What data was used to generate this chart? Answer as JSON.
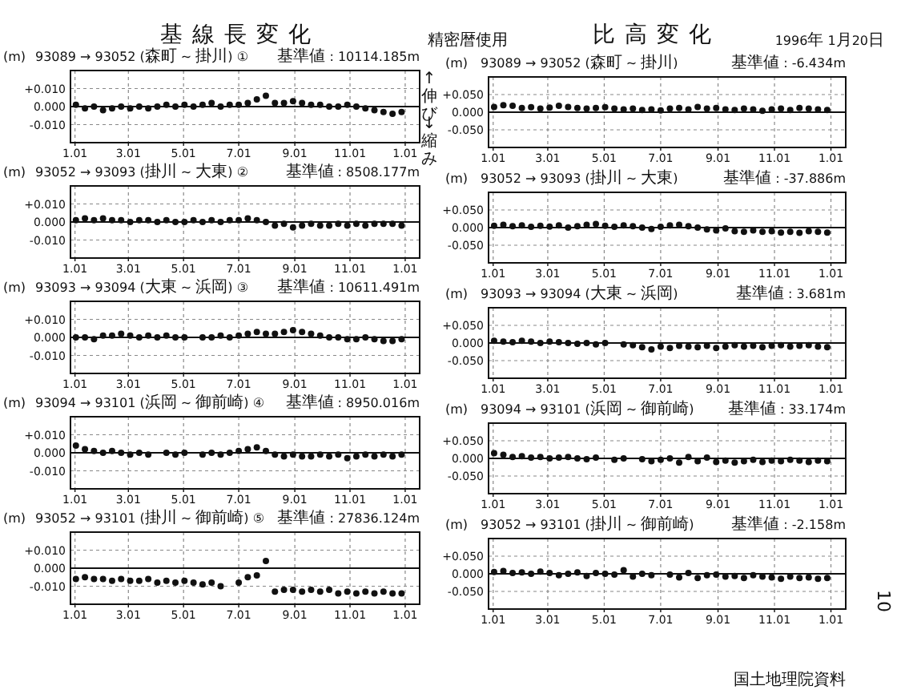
{
  "chart_data": [
    {
      "type": "scatter",
      "title": "93089 → 93052 (森町 ~ 掛川) ①",
      "subtitle": "基準値 : 10114.185m",
      "ylabel": "(m)",
      "annotations": [
        "基線長変化",
        "精密暦使用"
      ],
      "marker": "circle",
      "grid": true,
      "xlim": [
        "1994-12-27",
        "1996-01-17"
      ],
      "xticks": [
        {
          "value": "1995-01-01",
          "label": "1.01"
        },
        {
          "value": "1995-03-01",
          "label": "3.01"
        },
        {
          "value": "1995-05-01",
          "label": "5.01"
        },
        {
          "value": "1995-07-01",
          "label": "7.01"
        },
        {
          "value": "1995-09-01",
          "label": "9.01"
        },
        {
          "value": "1995-11-01",
          "label": "11.01"
        },
        {
          "value": "1996-01-01",
          "label": "1.01"
        }
      ],
      "ylim": [
        -0.02,
        0.02
      ],
      "yticks": [
        {
          "value": 0.01,
          "label": "+0.010"
        },
        {
          "value": 0,
          "label": "0.000"
        },
        {
          "value": -0.01,
          "label": "-0.010"
        }
      ],
      "ref_lines": [
        {
          "axis": "y",
          "value": 0
        }
      ],
      "x": [
        "1995-01-02",
        "1995-01-12",
        "1995-01-22",
        "1995-02-01",
        "1995-02-11",
        "1995-02-21",
        "1995-03-03",
        "1995-03-13",
        "1995-03-23",
        "1995-04-02",
        "1995-04-12",
        "1995-04-22",
        "1995-05-02",
        "1995-05-12",
        "1995-05-22",
        "1995-06-01",
        "1995-06-11",
        "1995-06-21",
        "1995-07-01",
        "1995-07-11",
        "1995-07-21",
        "1995-07-31",
        "1995-08-10",
        "1995-08-20",
        "1995-08-30",
        "1995-09-09",
        "1995-09-19",
        "1995-09-29",
        "1995-10-09",
        "1995-10-19",
        "1995-10-29",
        "1995-11-08",
        "1995-11-18",
        "1995-11-28",
        "1995-12-08",
        "1995-12-18",
        "1995-12-28"
      ],
      "series": [
        {
          "color": "#111111",
          "values": [
            0.001,
            -0.001,
            0.0,
            -0.002,
            -0.001,
            0.0,
            -0.001,
            0.0,
            -0.001,
            0.0,
            0.001,
            0.0,
            0.001,
            0.0,
            0.001,
            0.002,
            0.0,
            0.001,
            0.001,
            0.002,
            0.004,
            0.006,
            0.002,
            0.002,
            0.003,
            0.002,
            0.001,
            0.001,
            0.0,
            0.0,
            0.001,
            0.0,
            -0.001,
            -0.002,
            -0.003,
            -0.004,
            -0.003
          ]
        }
      ]
    },
    {
      "type": "scatter",
      "title": "93089 → 93052 (森町 ~ 掛川)",
      "subtitle": "基準値 : -6.434m",
      "ylabel": "(m)",
      "annotations": [
        "比高変化",
        "1996年 1月20日",
        "↑伸び",
        "↓縮み"
      ],
      "marker": "circle",
      "grid": true,
      "xlim": [
        "1994-12-27",
        "1996-01-17"
      ],
      "xticks": [
        {
          "value": "1995-01-01",
          "label": "1.01"
        },
        {
          "value": "1995-03-01",
          "label": "3.01"
        },
        {
          "value": "1995-05-01",
          "label": "5.01"
        },
        {
          "value": "1995-07-01",
          "label": "7.01"
        },
        {
          "value": "1995-09-01",
          "label": "9.01"
        },
        {
          "value": "1995-11-01",
          "label": "11.01"
        },
        {
          "value": "1996-01-01",
          "label": "1.01"
        }
      ],
      "ylim": [
        -0.1,
        0.1
      ],
      "yticks": [
        {
          "value": 0.05,
          "label": "+0.050"
        },
        {
          "value": 0,
          "label": "0.000"
        },
        {
          "value": -0.05,
          "label": "-0.050"
        }
      ],
      "ref_lines": [
        {
          "axis": "y",
          "value": 0
        }
      ],
      "x": [
        "1995-01-02",
        "1995-01-12",
        "1995-01-22",
        "1995-02-01",
        "1995-02-11",
        "1995-02-21",
        "1995-03-03",
        "1995-03-13",
        "1995-03-23",
        "1995-04-02",
        "1995-04-12",
        "1995-04-22",
        "1995-05-02",
        "1995-05-12",
        "1995-05-22",
        "1995-06-01",
        "1995-06-11",
        "1995-06-21",
        "1995-07-01",
        "1995-07-11",
        "1995-07-21",
        "1995-07-31",
        "1995-08-10",
        "1995-08-20",
        "1995-08-30",
        "1995-09-09",
        "1995-09-19",
        "1995-09-29",
        "1995-10-09",
        "1995-10-19",
        "1995-10-29",
        "1995-11-08",
        "1995-11-18",
        "1995-11-28",
        "1995-12-08",
        "1995-12-18",
        "1995-12-28"
      ],
      "series": [
        {
          "color": "#111111",
          "values": [
            0.015,
            0.02,
            0.018,
            0.012,
            0.014,
            0.01,
            0.013,
            0.018,
            0.015,
            0.012,
            0.01,
            0.012,
            0.014,
            0.01,
            0.008,
            0.01,
            0.006,
            0.008,
            0.005,
            0.01,
            0.012,
            0.008,
            0.015,
            0.01,
            0.012,
            0.008,
            0.006,
            0.01,
            0.008,
            0.004,
            0.008,
            0.01,
            0.006,
            0.012,
            0.01,
            0.008,
            0.006
          ]
        }
      ]
    },
    {
      "type": "scatter",
      "title": "93052 → 93093 (掛川 ~ 大東) ②",
      "subtitle": "基準値 : 8508.177m",
      "ylabel": "(m)",
      "marker": "circle",
      "grid": true,
      "xlim": [
        "1994-12-27",
        "1996-01-17"
      ],
      "xticks": [
        {
          "value": "1995-01-01",
          "label": "1.01"
        },
        {
          "value": "1995-03-01",
          "label": "3.01"
        },
        {
          "value": "1995-05-01",
          "label": "5.01"
        },
        {
          "value": "1995-07-01",
          "label": "7.01"
        },
        {
          "value": "1995-09-01",
          "label": "9.01"
        },
        {
          "value": "1995-11-01",
          "label": "11.01"
        },
        {
          "value": "1996-01-01",
          "label": "1.01"
        }
      ],
      "ylim": [
        -0.02,
        0.02
      ],
      "yticks": [
        {
          "value": 0.01,
          "label": "+0.010"
        },
        {
          "value": 0,
          "label": "0.000"
        },
        {
          "value": -0.01,
          "label": "-0.010"
        }
      ],
      "ref_lines": [
        {
          "axis": "y",
          "value": 0
        }
      ],
      "x": [
        "1995-01-02",
        "1995-01-12",
        "1995-01-22",
        "1995-02-01",
        "1995-02-11",
        "1995-02-21",
        "1995-03-03",
        "1995-03-13",
        "1995-03-23",
        "1995-04-02",
        "1995-04-12",
        "1995-04-22",
        "1995-05-02",
        "1995-05-12",
        "1995-05-22",
        "1995-06-01",
        "1995-06-11",
        "1995-06-21",
        "1995-07-01",
        "1995-07-11",
        "1995-07-21",
        "1995-07-31",
        "1995-08-10",
        "1995-08-20",
        "1995-08-30",
        "1995-09-09",
        "1995-09-19",
        "1995-09-29",
        "1995-10-09",
        "1995-10-19",
        "1995-10-29",
        "1995-11-08",
        "1995-11-18",
        "1995-11-28",
        "1995-12-08",
        "1995-12-18",
        "1995-12-28"
      ],
      "series": [
        {
          "color": "#111111",
          "values": [
            0.001,
            0.002,
            0.001,
            0.002,
            0.001,
            0.001,
            0.0,
            0.001,
            0.001,
            0.0,
            0.001,
            0.0,
            0.0,
            0.001,
            0.0,
            0.001,
            0.0,
            0.001,
            0.001,
            0.002,
            0.001,
            0.0,
            -0.002,
            -0.001,
            -0.003,
            -0.002,
            -0.001,
            -0.002,
            -0.002,
            -0.001,
            -0.002,
            -0.001,
            -0.002,
            -0.001,
            -0.001,
            -0.001,
            -0.002
          ]
        }
      ]
    },
    {
      "type": "scatter",
      "title": "93052 → 93093 (掛川 ~ 大東)",
      "subtitle": "基準値 : -37.886m",
      "ylabel": "(m)",
      "marker": "circle",
      "grid": true,
      "xlim": [
        "1994-12-27",
        "1996-01-17"
      ],
      "xticks": [
        {
          "value": "1995-01-01",
          "label": "1.01"
        },
        {
          "value": "1995-03-01",
          "label": "3.01"
        },
        {
          "value": "1995-05-01",
          "label": "5.01"
        },
        {
          "value": "1995-07-01",
          "label": "7.01"
        },
        {
          "value": "1995-09-01",
          "label": "9.01"
        },
        {
          "value": "1995-11-01",
          "label": "11.01"
        },
        {
          "value": "1996-01-01",
          "label": "1.01"
        }
      ],
      "ylim": [
        -0.1,
        0.1
      ],
      "yticks": [
        {
          "value": 0.05,
          "label": "+0.050"
        },
        {
          "value": 0,
          "label": "0.000"
        },
        {
          "value": -0.05,
          "label": "-0.050"
        }
      ],
      "ref_lines": [
        {
          "axis": "y",
          "value": 0
        }
      ],
      "x": [
        "1995-01-02",
        "1995-01-12",
        "1995-01-22",
        "1995-02-01",
        "1995-02-11",
        "1995-02-21",
        "1995-03-03",
        "1995-03-13",
        "1995-03-23",
        "1995-04-02",
        "1995-04-12",
        "1995-04-22",
        "1995-05-02",
        "1995-05-12",
        "1995-05-22",
        "1995-06-01",
        "1995-06-11",
        "1995-06-21",
        "1995-07-01",
        "1995-07-11",
        "1995-07-21",
        "1995-07-31",
        "1995-08-10",
        "1995-08-20",
        "1995-08-30",
        "1995-09-09",
        "1995-09-19",
        "1995-09-29",
        "1995-10-09",
        "1995-10-19",
        "1995-10-29",
        "1995-11-08",
        "1995-11-18",
        "1995-11-28",
        "1995-12-08",
        "1995-12-18",
        "1995-12-28"
      ],
      "series": [
        {
          "color": "#111111",
          "values": [
            0.005,
            0.008,
            0.004,
            0.006,
            0.002,
            0.005,
            0.003,
            0.006,
            0.0,
            0.004,
            0.008,
            0.01,
            0.005,
            0.002,
            0.006,
            0.004,
            0.0,
            -0.004,
            0.002,
            0.006,
            0.008,
            0.004,
            0.0,
            -0.005,
            -0.008,
            -0.002,
            -0.01,
            -0.012,
            -0.008,
            -0.012,
            -0.01,
            -0.014,
            -0.012,
            -0.015,
            -0.01,
            -0.012,
            -0.014
          ]
        }
      ]
    },
    {
      "type": "scatter",
      "title": "93093 → 93094 (大東 ~ 浜岡) ③",
      "subtitle": "基準値 : 10611.491m",
      "ylabel": "(m)",
      "marker": "circle",
      "grid": true,
      "xlim": [
        "1994-12-27",
        "1996-01-17"
      ],
      "xticks": [
        {
          "value": "1995-01-01",
          "label": "1.01"
        },
        {
          "value": "1995-03-01",
          "label": "3.01"
        },
        {
          "value": "1995-05-01",
          "label": "5.01"
        },
        {
          "value": "1995-07-01",
          "label": "7.01"
        },
        {
          "value": "1995-09-01",
          "label": "9.01"
        },
        {
          "value": "1995-11-01",
          "label": "11.01"
        },
        {
          "value": "1996-01-01",
          "label": "1.01"
        }
      ],
      "ylim": [
        -0.02,
        0.02
      ],
      "yticks": [
        {
          "value": 0.01,
          "label": "+0.010"
        },
        {
          "value": 0,
          "label": "0.000"
        },
        {
          "value": -0.01,
          "label": "-0.010"
        }
      ],
      "ref_lines": [
        {
          "axis": "y",
          "value": 0
        }
      ],
      "x": [
        "1995-01-02",
        "1995-01-12",
        "1995-01-22",
        "1995-02-01",
        "1995-02-11",
        "1995-02-21",
        "1995-03-03",
        "1995-03-13",
        "1995-03-23",
        "1995-04-02",
        "1995-04-12",
        "1995-04-22",
        "1995-05-02",
        "1995-05-22",
        "1995-06-01",
        "1995-06-11",
        "1995-06-21",
        "1995-07-01",
        "1995-07-11",
        "1995-07-21",
        "1995-07-31",
        "1995-08-10",
        "1995-08-20",
        "1995-08-30",
        "1995-09-09",
        "1995-09-19",
        "1995-09-29",
        "1995-10-09",
        "1995-10-19",
        "1995-10-29",
        "1995-11-08",
        "1995-11-18",
        "1995-11-28",
        "1995-12-08",
        "1995-12-18",
        "1995-12-28"
      ],
      "series": [
        {
          "color": "#111111",
          "values": [
            0.0,
            0.0,
            -0.001,
            0.001,
            0.001,
            0.002,
            0.001,
            0.0,
            0.001,
            0.0,
            0.001,
            0.0,
            0.0,
            0.0,
            0.0,
            0.001,
            0.0,
            0.001,
            0.002,
            0.003,
            0.002,
            0.002,
            0.003,
            0.004,
            0.003,
            0.002,
            0.001,
            0.0,
            0.0,
            -0.001,
            -0.001,
            0.0,
            -0.001,
            -0.002,
            -0.002,
            -0.001
          ]
        }
      ]
    },
    {
      "type": "scatter",
      "title": "93093 → 93094 (大東 ~ 浜岡)",
      "subtitle": "基準値 : 3.681m",
      "ylabel": "(m)",
      "marker": "circle",
      "grid": true,
      "xlim": [
        "1994-12-27",
        "1996-01-17"
      ],
      "xticks": [
        {
          "value": "1995-01-01",
          "label": "1.01"
        },
        {
          "value": "1995-03-01",
          "label": "3.01"
        },
        {
          "value": "1995-05-01",
          "label": "5.01"
        },
        {
          "value": "1995-07-01",
          "label": "7.01"
        },
        {
          "value": "1995-09-01",
          "label": "9.01"
        },
        {
          "value": "1995-11-01",
          "label": "11.01"
        },
        {
          "value": "1996-01-01",
          "label": "1.01"
        }
      ],
      "ylim": [
        -0.1,
        0.1
      ],
      "yticks": [
        {
          "value": 0.05,
          "label": "+0.050"
        },
        {
          "value": 0,
          "label": "0.000"
        },
        {
          "value": -0.05,
          "label": "-0.050"
        }
      ],
      "ref_lines": [
        {
          "axis": "y",
          "value": 0
        }
      ],
      "x": [
        "1995-01-02",
        "1995-01-12",
        "1995-01-22",
        "1995-02-01",
        "1995-02-11",
        "1995-02-21",
        "1995-03-03",
        "1995-03-13",
        "1995-03-23",
        "1995-04-02",
        "1995-04-12",
        "1995-04-22",
        "1995-05-02",
        "1995-05-22",
        "1995-06-01",
        "1995-06-11",
        "1995-06-21",
        "1995-07-01",
        "1995-07-11",
        "1995-07-21",
        "1995-07-31",
        "1995-08-10",
        "1995-08-20",
        "1995-08-30",
        "1995-09-09",
        "1995-09-19",
        "1995-09-29",
        "1995-10-09",
        "1995-10-19",
        "1995-10-29",
        "1995-11-08",
        "1995-11-18",
        "1995-11-28",
        "1995-12-08",
        "1995-12-18",
        "1995-12-28"
      ],
      "series": [
        {
          "color": "#111111",
          "values": [
            0.006,
            0.004,
            0.002,
            0.006,
            0.004,
            0.0,
            0.004,
            0.002,
            0.0,
            -0.002,
            0.0,
            -0.004,
            0.0,
            -0.004,
            -0.006,
            -0.012,
            -0.018,
            -0.01,
            -0.014,
            -0.008,
            -0.01,
            -0.012,
            -0.008,
            -0.014,
            -0.01,
            -0.006,
            -0.01,
            -0.008,
            -0.012,
            -0.008,
            -0.006,
            -0.01,
            -0.008,
            -0.006,
            -0.01,
            -0.012
          ]
        }
      ]
    },
    {
      "type": "scatter",
      "title": "93094 → 93101 (浜岡 ~ 御前崎) ④",
      "subtitle": "基準値 : 8950.016m",
      "ylabel": "(m)",
      "marker": "circle",
      "grid": true,
      "xlim": [
        "1994-12-27",
        "1996-01-17"
      ],
      "xticks": [
        {
          "value": "1995-01-01",
          "label": "1.01"
        },
        {
          "value": "1995-03-01",
          "label": "3.01"
        },
        {
          "value": "1995-05-01",
          "label": "5.01"
        },
        {
          "value": "1995-07-01",
          "label": "7.01"
        },
        {
          "value": "1995-09-01",
          "label": "9.01"
        },
        {
          "value": "1995-11-01",
          "label": "11.01"
        },
        {
          "value": "1996-01-01",
          "label": "1.01"
        }
      ],
      "ylim": [
        -0.02,
        0.02
      ],
      "yticks": [
        {
          "value": 0.01,
          "label": "+0.010"
        },
        {
          "value": 0,
          "label": "0.000"
        },
        {
          "value": -0.01,
          "label": "-0.010"
        }
      ],
      "ref_lines": [
        {
          "axis": "y",
          "value": 0
        }
      ],
      "x": [
        "1995-01-02",
        "1995-01-12",
        "1995-01-22",
        "1995-02-01",
        "1995-02-11",
        "1995-02-21",
        "1995-03-03",
        "1995-03-13",
        "1995-03-23",
        "1995-04-12",
        "1995-04-22",
        "1995-05-02",
        "1995-05-22",
        "1995-06-01",
        "1995-06-11",
        "1995-06-21",
        "1995-07-01",
        "1995-07-11",
        "1995-07-21",
        "1995-07-31",
        "1995-08-10",
        "1995-08-20",
        "1995-08-30",
        "1995-09-09",
        "1995-09-19",
        "1995-09-29",
        "1995-10-09",
        "1995-10-19",
        "1995-10-29",
        "1995-11-08",
        "1995-11-18",
        "1995-11-28",
        "1995-12-08",
        "1995-12-18",
        "1995-12-28"
      ],
      "series": [
        {
          "color": "#111111",
          "values": [
            0.004,
            0.002,
            0.001,
            0.0,
            0.001,
            0.0,
            -0.001,
            0.0,
            -0.001,
            0.0,
            -0.001,
            0.0,
            -0.001,
            0.0,
            -0.001,
            0.0,
            0.001,
            0.002,
            0.003,
            0.001,
            -0.001,
            -0.002,
            -0.001,
            -0.002,
            -0.002,
            -0.001,
            -0.002,
            -0.001,
            -0.003,
            -0.002,
            -0.001,
            -0.002,
            -0.001,
            -0.002,
            -0.001
          ]
        }
      ]
    },
    {
      "type": "scatter",
      "title": "93094 → 93101 (浜岡 ~ 御前崎)",
      "subtitle": "基準値 : 33.174m",
      "ylabel": "(m)",
      "marker": "circle",
      "grid": true,
      "xlim": [
        "1994-12-27",
        "1996-01-17"
      ],
      "xticks": [
        {
          "value": "1995-01-01",
          "label": "1.01"
        },
        {
          "value": "1995-03-01",
          "label": "3.01"
        },
        {
          "value": "1995-05-01",
          "label": "5.01"
        },
        {
          "value": "1995-07-01",
          "label": "7.01"
        },
        {
          "value": "1995-09-01",
          "label": "9.01"
        },
        {
          "value": "1995-11-01",
          "label": "11.01"
        },
        {
          "value": "1996-01-01",
          "label": "1.01"
        }
      ],
      "ylim": [
        -0.1,
        0.1
      ],
      "yticks": [
        {
          "value": 0.05,
          "label": "+0.050"
        },
        {
          "value": 0,
          "label": "0.000"
        },
        {
          "value": -0.05,
          "label": "-0.050"
        }
      ],
      "ref_lines": [
        {
          "axis": "y",
          "value": 0
        }
      ],
      "x": [
        "1995-01-02",
        "1995-01-12",
        "1995-01-22",
        "1995-02-01",
        "1995-02-11",
        "1995-02-21",
        "1995-03-03",
        "1995-03-13",
        "1995-03-23",
        "1995-04-02",
        "1995-04-12",
        "1995-04-22",
        "1995-05-12",
        "1995-05-22",
        "1995-06-11",
        "1995-06-21",
        "1995-07-01",
        "1995-07-11",
        "1995-07-21",
        "1995-07-31",
        "1995-08-10",
        "1995-08-20",
        "1995-08-30",
        "1995-09-09",
        "1995-09-19",
        "1995-09-29",
        "1995-10-09",
        "1995-10-19",
        "1995-10-29",
        "1995-11-08",
        "1995-11-18",
        "1995-11-28",
        "1995-12-08",
        "1995-12-18",
        "1995-12-28"
      ],
      "series": [
        {
          "color": "#111111",
          "values": [
            0.015,
            0.01,
            0.004,
            0.006,
            0.002,
            0.004,
            0.0,
            0.002,
            0.004,
            0.0,
            -0.002,
            0.002,
            -0.004,
            0.0,
            -0.002,
            -0.008,
            -0.004,
            0.0,
            -0.012,
            0.004,
            -0.008,
            0.002,
            -0.01,
            -0.006,
            -0.012,
            -0.008,
            -0.004,
            -0.01,
            -0.006,
            -0.008,
            -0.004,
            -0.006,
            -0.01,
            -0.006,
            -0.008
          ]
        }
      ]
    },
    {
      "type": "scatter",
      "title": "93052 → 93101 (掛川 ~ 御前崎) ⑤",
      "subtitle": "基準値 : 27836.124m",
      "ylabel": "(m)",
      "marker": "circle",
      "grid": true,
      "xlim": [
        "1994-12-27",
        "1996-01-17"
      ],
      "xticks": [
        {
          "value": "1995-01-01",
          "label": "1.01"
        },
        {
          "value": "1995-03-01",
          "label": "3.01"
        },
        {
          "value": "1995-05-01",
          "label": "5.01"
        },
        {
          "value": "1995-07-01",
          "label": "7.01"
        },
        {
          "value": "1995-09-01",
          "label": "9.01"
        },
        {
          "value": "1995-11-01",
          "label": "11.01"
        },
        {
          "value": "1996-01-01",
          "label": "1.01"
        }
      ],
      "ylim": [
        -0.02,
        0.02
      ],
      "yticks": [
        {
          "value": 0.01,
          "label": "+0.010"
        },
        {
          "value": 0,
          "label": "0.000"
        },
        {
          "value": -0.01,
          "label": "-0.010"
        }
      ],
      "ref_lines": [
        {
          "axis": "y",
          "value": 0
        }
      ],
      "x": [
        "1995-01-02",
        "1995-01-12",
        "1995-01-22",
        "1995-02-01",
        "1995-02-11",
        "1995-02-21",
        "1995-03-03",
        "1995-03-13",
        "1995-03-23",
        "1995-04-02",
        "1995-04-12",
        "1995-04-22",
        "1995-05-02",
        "1995-05-12",
        "1995-05-22",
        "1995-06-01",
        "1995-06-11",
        "1995-07-01",
        "1995-07-11",
        "1995-07-21",
        "1995-07-31",
        "1995-08-10",
        "1995-08-20",
        "1995-08-30",
        "1995-09-09",
        "1995-09-19",
        "1995-09-29",
        "1995-10-09",
        "1995-10-19",
        "1995-10-29",
        "1995-11-08",
        "1995-11-18",
        "1995-11-28",
        "1995-12-08",
        "1995-12-18",
        "1995-12-28"
      ],
      "series": [
        {
          "color": "#111111",
          "values": [
            -0.006,
            -0.005,
            -0.006,
            -0.006,
            -0.007,
            -0.006,
            -0.007,
            -0.007,
            -0.006,
            -0.008,
            -0.007,
            -0.008,
            -0.007,
            -0.008,
            -0.009,
            -0.008,
            -0.01,
            -0.008,
            -0.005,
            -0.004,
            0.004,
            -0.013,
            -0.012,
            -0.012,
            -0.013,
            -0.012,
            -0.013,
            -0.012,
            -0.014,
            -0.013,
            -0.014,
            -0.013,
            -0.014,
            -0.013,
            -0.014,
            -0.014
          ]
        }
      ]
    },
    {
      "type": "scatter",
      "title": "93052 → 93101 (掛川 ~ 御前崎)",
      "subtitle": "基準値 : -2.158m",
      "ylabel": "(m)",
      "annotations": [
        "国土地理院資料",
        "10"
      ],
      "marker": "circle",
      "grid": true,
      "xlim": [
        "1994-12-27",
        "1996-01-17"
      ],
      "xticks": [
        {
          "value": "1995-01-01",
          "label": "1.01"
        },
        {
          "value": "1995-03-01",
          "label": "3.01"
        },
        {
          "value": "1995-05-01",
          "label": "5.01"
        },
        {
          "value": "1995-07-01",
          "label": "7.01"
        },
        {
          "value": "1995-09-01",
          "label": "9.01"
        },
        {
          "value": "1995-11-01",
          "label": "11.01"
        },
        {
          "value": "1996-01-01",
          "label": "1.01"
        }
      ],
      "ylim": [
        -0.1,
        0.1
      ],
      "yticks": [
        {
          "value": 0.05,
          "label": "+0.050"
        },
        {
          "value": 0,
          "label": "0.000"
        },
        {
          "value": -0.05,
          "label": "-0.050"
        }
      ],
      "ref_lines": [
        {
          "axis": "y",
          "value": 0
        }
      ],
      "x": [
        "1995-01-02",
        "1995-01-12",
        "1995-01-22",
        "1995-02-01",
        "1995-02-11",
        "1995-02-21",
        "1995-03-03",
        "1995-03-13",
        "1995-03-23",
        "1995-04-02",
        "1995-04-12",
        "1995-04-22",
        "1995-05-02",
        "1995-05-12",
        "1995-05-22",
        "1995-06-01",
        "1995-06-11",
        "1995-06-21",
        "1995-07-11",
        "1995-07-21",
        "1995-07-31",
        "1995-08-10",
        "1995-08-20",
        "1995-08-30",
        "1995-09-09",
        "1995-09-19",
        "1995-09-29",
        "1995-10-09",
        "1995-10-19",
        "1995-10-29",
        "1995-11-08",
        "1995-11-18",
        "1995-11-28",
        "1995-12-08",
        "1995-12-18",
        "1995-12-28"
      ],
      "series": [
        {
          "color": "#111111",
          "values": [
            0.005,
            0.008,
            0.002,
            0.004,
            0.0,
            0.006,
            0.002,
            -0.004,
            0.0,
            0.004,
            -0.006,
            0.002,
            0.0,
            -0.002,
            0.01,
            -0.008,
            0.0,
            -0.004,
            -0.002,
            -0.01,
            0.002,
            -0.012,
            -0.004,
            -0.002,
            -0.008,
            -0.006,
            -0.012,
            -0.004,
            -0.008,
            -0.01,
            -0.014,
            -0.008,
            -0.012,
            -0.01,
            -0.014,
            -0.012
          ]
        }
      ]
    }
  ]
}
